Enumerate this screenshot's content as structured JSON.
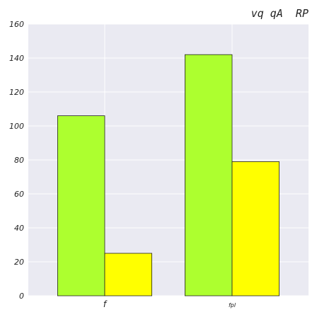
{
  "chart_data": {
    "type": "bar",
    "title": "vq qA  RP",
    "xlabel": "",
    "ylabel": "",
    "categories": [
      "f",
      "fpl"
    ],
    "series": [
      {
        "values": [
          106,
          142
        ],
        "color": "#adff2f"
      },
      {
        "values": [
          25,
          79
        ],
        "color": "#ffff00"
      }
    ],
    "ylim": [
      0,
      160
    ],
    "yticks": [
      0,
      20,
      40,
      60,
      80,
      100,
      120,
      140,
      160
    ],
    "grid": true,
    "background_color": "#eaeaf2",
    "grid_color": "#ffffff",
    "bar_edge_color": "#222222"
  }
}
